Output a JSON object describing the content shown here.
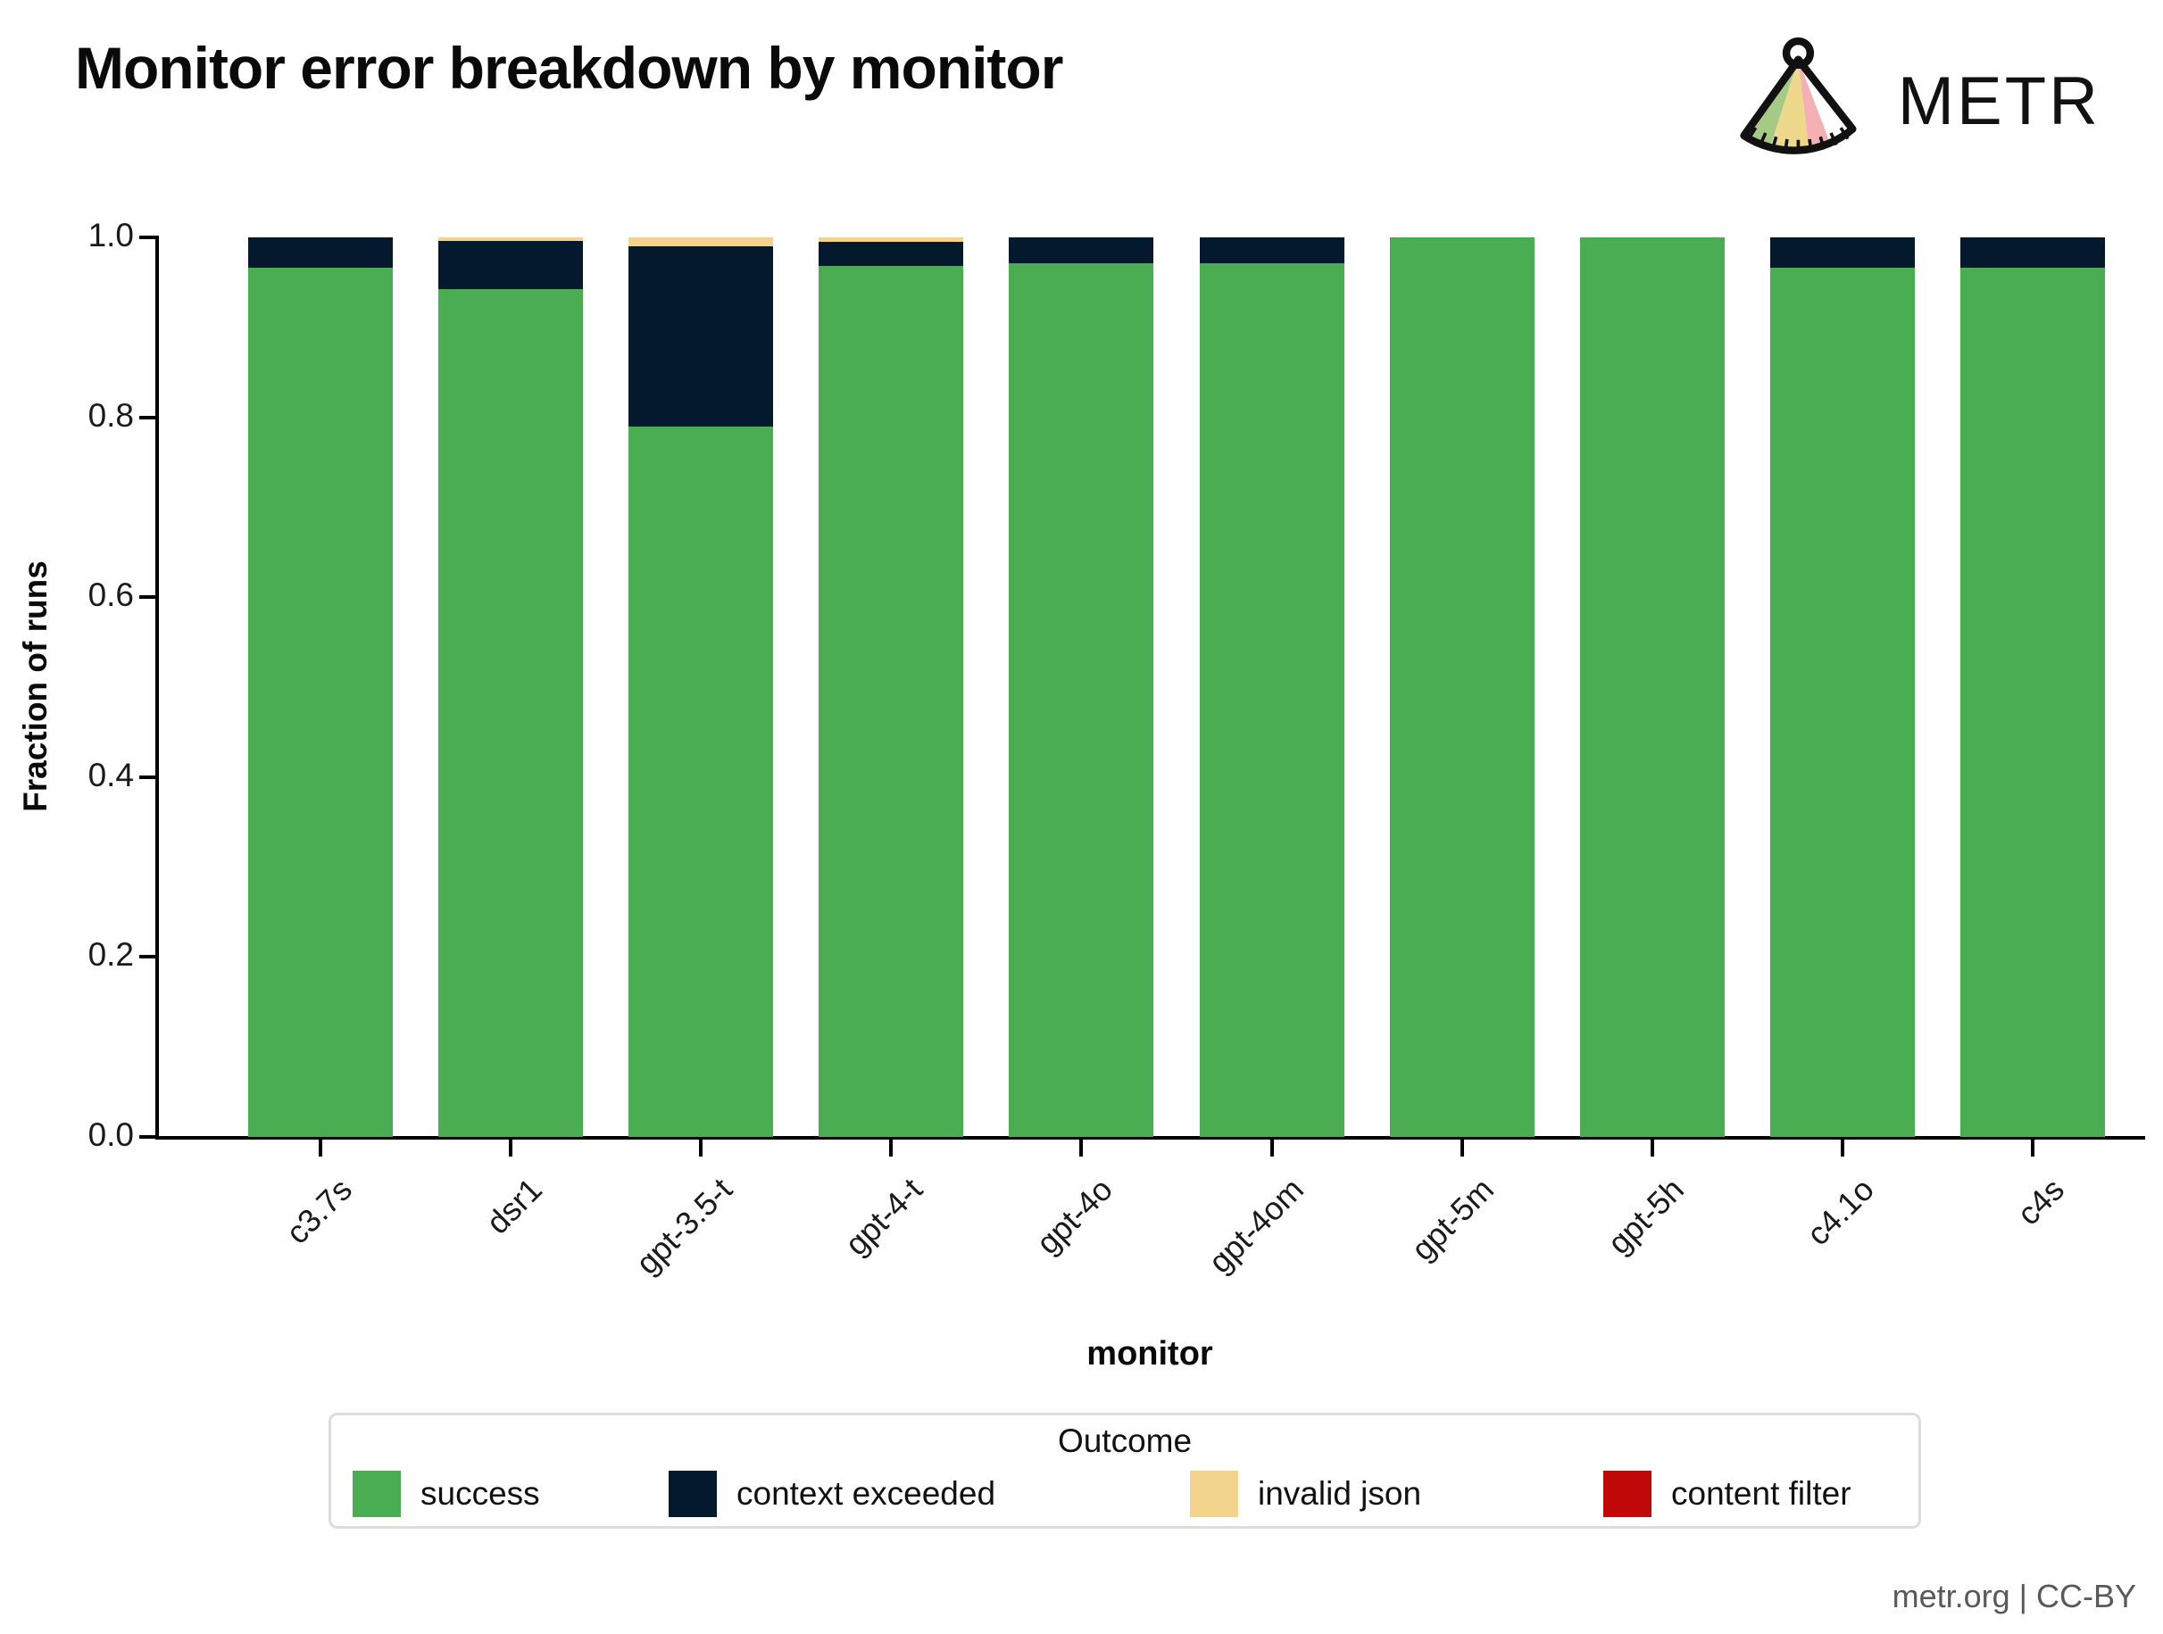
{
  "header": {
    "title": "Monitor error breakdown by monitor",
    "brand": "METR"
  },
  "footer": "metr.org | CC-BY",
  "chart_data": {
    "type": "bar",
    "stacked": true,
    "title": "Monitor error breakdown by monitor",
    "xlabel": "monitor",
    "ylabel": "Fraction of runs",
    "ylim": [
      0.0,
      1.0
    ],
    "yticks": [
      0.0,
      0.2,
      0.4,
      0.6,
      0.8,
      1.0
    ],
    "grid": false,
    "categories": [
      "c3.7s",
      "dsr1",
      "gpt-3.5-t",
      "gpt-4-t",
      "gpt-4o",
      "gpt-4om",
      "gpt-5m",
      "gpt-5h",
      "c4.1o",
      "c4s"
    ],
    "legend": {
      "title": "Outcome",
      "position": "bottom"
    },
    "series": [
      {
        "name": "success",
        "color": "#4bad52",
        "values": [
          0.966,
          0.942,
          0.79,
          0.968,
          0.971,
          0.971,
          1.0,
          1.0,
          0.966,
          0.966
        ]
      },
      {
        "name": "context exceeded",
        "color": "#04192d",
        "values": [
          0.034,
          0.054,
          0.2,
          0.027,
          0.029,
          0.029,
          0.0,
          0.0,
          0.034,
          0.034
        ]
      },
      {
        "name": "invalid json",
        "color": "#f2d48c",
        "values": [
          0.0,
          0.004,
          0.01,
          0.005,
          0.0,
          0.0,
          0.0,
          0.0,
          0.0,
          0.0
        ]
      },
      {
        "name": "content filter",
        "color": "#c00a0a",
        "values": [
          0.0,
          0.0,
          0.0,
          0.0,
          0.0,
          0.0,
          0.0,
          0.0,
          0.0,
          0.0
        ]
      }
    ]
  }
}
